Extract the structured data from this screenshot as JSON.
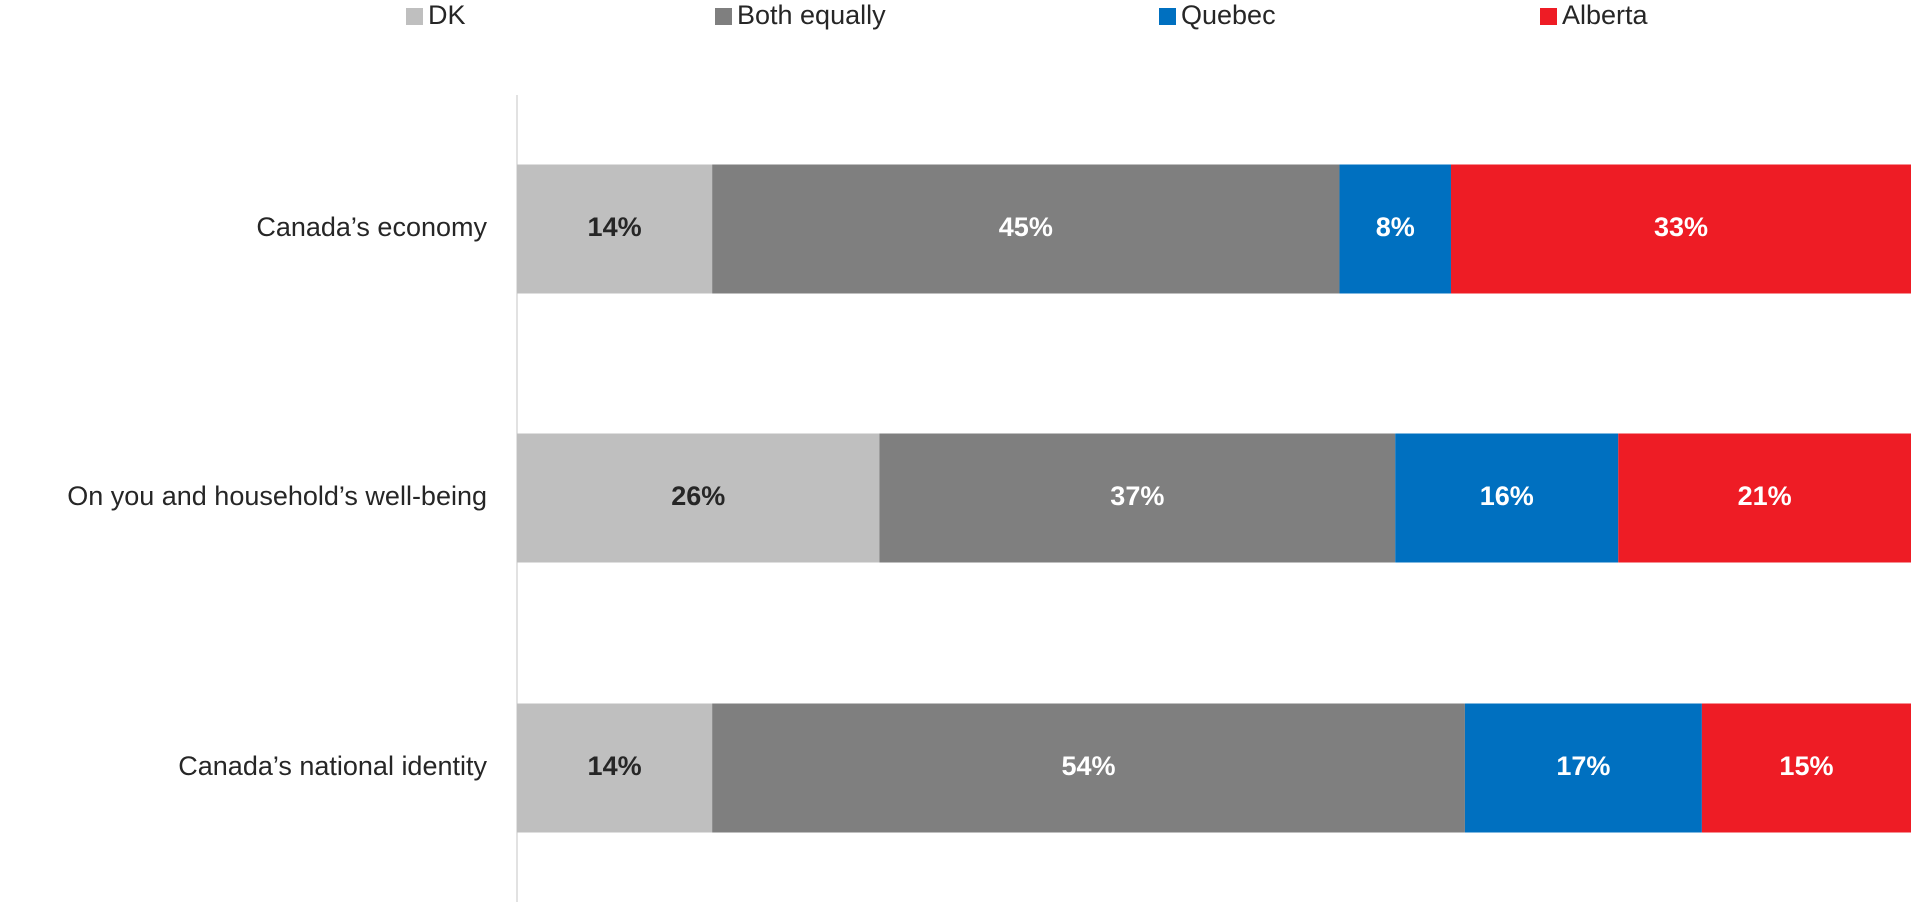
{
  "chart_data": {
    "type": "stacked_bar_horizontal",
    "categories": [
      "Canada’s economy",
      "On you and household’s well-being",
      "Canada’s national identity"
    ],
    "series": [
      {
        "name": "DK",
        "color": "#bfbfbf",
        "values": [
          14,
          26,
          14
        ],
        "value_labels": [
          "14%",
          "26%",
          "14%"
        ]
      },
      {
        "name": "Both equally",
        "color": "#7f7f7f",
        "values": [
          45,
          37,
          54
        ],
        "value_labels": [
          "45%",
          "37%",
          "54%"
        ]
      },
      {
        "name": "Quebec",
        "color": "#0070c0",
        "values": [
          8,
          16,
          17
        ],
        "value_labels": [
          "8%",
          "16%",
          "17%"
        ]
      },
      {
        "name": "Alberta",
        "color": "#ee1c25",
        "values": [
          33,
          21,
          15
        ],
        "value_labels": [
          "33%",
          "21%",
          "15%"
        ]
      }
    ],
    "xlim": [
      0,
      100
    ]
  }
}
